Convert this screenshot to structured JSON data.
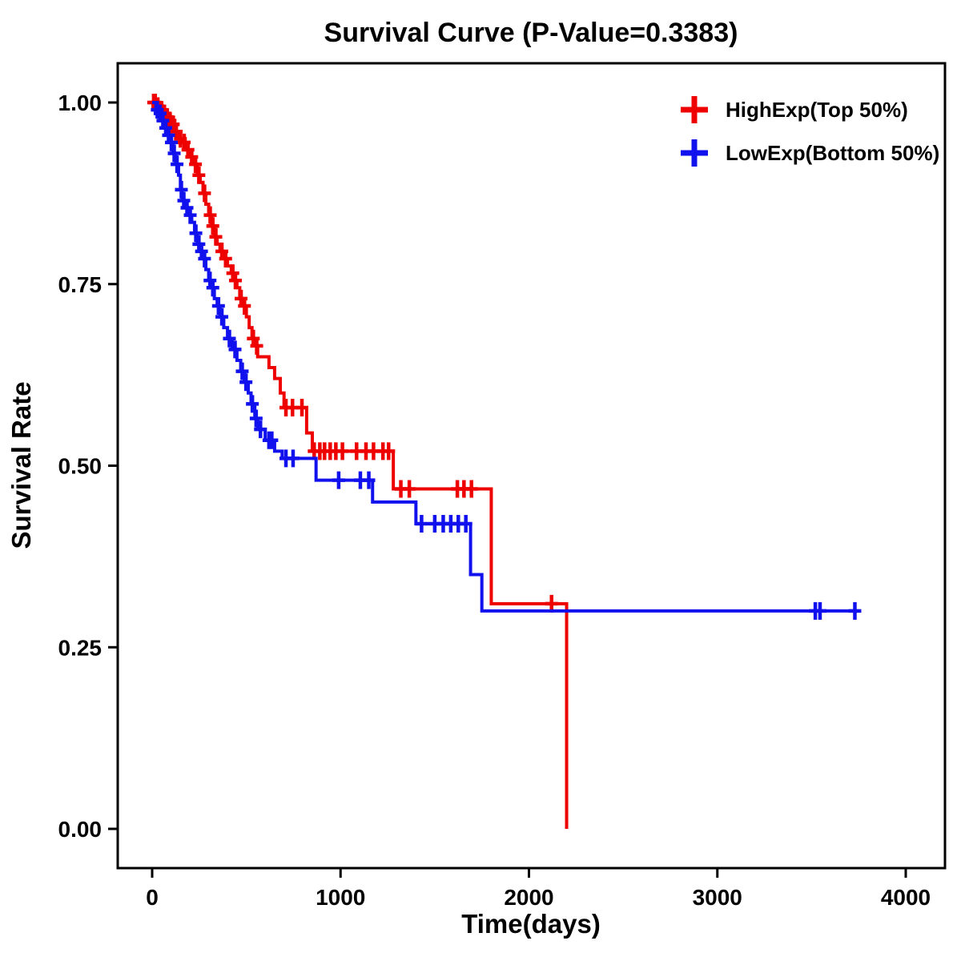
{
  "page": {
    "background": "#ffffff",
    "text_color": "#000000"
  },
  "chart_data": {
    "type": "line",
    "chart_kind": "kaplan-meier-step-survival",
    "title": "Survival Curve (P-Value=0.3383)",
    "p_value": "0.3383",
    "xlabel": "Time(days)",
    "ylabel": "Survival Rate",
    "xlim": [
      0,
      4000
    ],
    "ylim": [
      0.0,
      1.0
    ],
    "x_ticks": [
      "0",
      "1000",
      "2000",
      "3000",
      "4000"
    ],
    "y_ticks": [
      "0.00",
      "0.25",
      "0.50",
      "0.75",
      "1.00"
    ],
    "grid": false,
    "legend_position": "top-right",
    "series": [
      {
        "name": "HighExp(Top 50%)",
        "color": "#ee0000",
        "steps": [
          [
            0,
            1.0
          ],
          [
            25,
            0.995
          ],
          [
            45,
            0.99
          ],
          [
            60,
            0.985
          ],
          [
            75,
            0.98
          ],
          [
            90,
            0.975
          ],
          [
            105,
            0.97
          ],
          [
            120,
            0.96
          ],
          [
            140,
            0.95
          ],
          [
            160,
            0.945
          ],
          [
            180,
            0.935
          ],
          [
            200,
            0.925
          ],
          [
            220,
            0.915
          ],
          [
            240,
            0.9
          ],
          [
            255,
            0.89
          ],
          [
            270,
            0.875
          ],
          [
            285,
            0.86
          ],
          [
            300,
            0.845
          ],
          [
            315,
            0.83
          ],
          [
            330,
            0.815
          ],
          [
            345,
            0.805
          ],
          [
            360,
            0.795
          ],
          [
            380,
            0.785
          ],
          [
            400,
            0.775
          ],
          [
            420,
            0.765
          ],
          [
            435,
            0.755
          ],
          [
            450,
            0.745
          ],
          [
            465,
            0.73
          ],
          [
            480,
            0.72
          ],
          [
            500,
            0.705
          ],
          [
            515,
            0.69
          ],
          [
            530,
            0.675
          ],
          [
            545,
            0.665
          ],
          [
            560,
            0.65
          ],
          [
            620,
            0.635
          ],
          [
            650,
            0.62
          ],
          [
            680,
            0.6
          ],
          [
            700,
            0.58
          ],
          [
            820,
            0.545
          ],
          [
            850,
            0.52
          ],
          [
            1280,
            0.468
          ],
          [
            1800,
            0.31
          ],
          [
            2200,
            0.31
          ],
          [
            2200,
            0.0
          ]
        ],
        "censors": [
          [
            8,
            1.0
          ],
          [
            16,
            1.0
          ],
          [
            30,
            0.995
          ],
          [
            50,
            0.99
          ],
          [
            65,
            0.985
          ],
          [
            80,
            0.98
          ],
          [
            95,
            0.975
          ],
          [
            112,
            0.97
          ],
          [
            128,
            0.96
          ],
          [
            150,
            0.95
          ],
          [
            170,
            0.945
          ],
          [
            190,
            0.935
          ],
          [
            210,
            0.925
          ],
          [
            230,
            0.915
          ],
          [
            248,
            0.9
          ],
          [
            278,
            0.875
          ],
          [
            308,
            0.845
          ],
          [
            322,
            0.83
          ],
          [
            338,
            0.815
          ],
          [
            370,
            0.795
          ],
          [
            390,
            0.785
          ],
          [
            428,
            0.765
          ],
          [
            442,
            0.755
          ],
          [
            472,
            0.73
          ],
          [
            490,
            0.72
          ],
          [
            537,
            0.675
          ],
          [
            555,
            0.665
          ],
          [
            710,
            0.58
          ],
          [
            745,
            0.58
          ],
          [
            795,
            0.58
          ],
          [
            860,
            0.52
          ],
          [
            890,
            0.52
          ],
          [
            915,
            0.52
          ],
          [
            945,
            0.52
          ],
          [
            975,
            0.52
          ],
          [
            1010,
            0.52
          ],
          [
            1085,
            0.52
          ],
          [
            1135,
            0.52
          ],
          [
            1175,
            0.52
          ],
          [
            1225,
            0.52
          ],
          [
            1255,
            0.52
          ],
          [
            1320,
            0.468
          ],
          [
            1365,
            0.468
          ],
          [
            1620,
            0.468
          ],
          [
            1655,
            0.468
          ],
          [
            1695,
            0.468
          ],
          [
            2120,
            0.31
          ]
        ]
      },
      {
        "name": "LowExp(Bottom 50%)",
        "color": "#1111ee",
        "steps": [
          [
            0,
            1.0
          ],
          [
            20,
            0.99
          ],
          [
            35,
            0.985
          ],
          [
            50,
            0.975
          ],
          [
            65,
            0.965
          ],
          [
            80,
            0.955
          ],
          [
            95,
            0.945
          ],
          [
            110,
            0.93
          ],
          [
            125,
            0.915
          ],
          [
            140,
            0.9
          ],
          [
            150,
            0.88
          ],
          [
            160,
            0.865
          ],
          [
            175,
            0.855
          ],
          [
            195,
            0.845
          ],
          [
            210,
            0.835
          ],
          [
            225,
            0.82
          ],
          [
            240,
            0.805
          ],
          [
            255,
            0.795
          ],
          [
            270,
            0.785
          ],
          [
            285,
            0.77
          ],
          [
            300,
            0.755
          ],
          [
            315,
            0.745
          ],
          [
            330,
            0.73
          ],
          [
            345,
            0.72
          ],
          [
            360,
            0.705
          ],
          [
            380,
            0.69
          ],
          [
            400,
            0.675
          ],
          [
            425,
            0.66
          ],
          [
            450,
            0.645
          ],
          [
            470,
            0.63
          ],
          [
            490,
            0.615
          ],
          [
            510,
            0.6
          ],
          [
            525,
            0.585
          ],
          [
            545,
            0.565
          ],
          [
            560,
            0.55
          ],
          [
            600,
            0.535
          ],
          [
            650,
            0.52
          ],
          [
            690,
            0.51
          ],
          [
            870,
            0.48
          ],
          [
            1170,
            0.45
          ],
          [
            1400,
            0.42
          ],
          [
            1690,
            0.35
          ],
          [
            1750,
            0.3
          ],
          [
            3730,
            0.3
          ]
        ],
        "censors": [
          [
            27,
            0.99
          ],
          [
            42,
            0.985
          ],
          [
            57,
            0.975
          ],
          [
            72,
            0.965
          ],
          [
            87,
            0.955
          ],
          [
            102,
            0.945
          ],
          [
            117,
            0.93
          ],
          [
            132,
            0.915
          ],
          [
            155,
            0.88
          ],
          [
            168,
            0.865
          ],
          [
            185,
            0.855
          ],
          [
            202,
            0.845
          ],
          [
            232,
            0.82
          ],
          [
            248,
            0.805
          ],
          [
            262,
            0.795
          ],
          [
            278,
            0.785
          ],
          [
            307,
            0.755
          ],
          [
            322,
            0.745
          ],
          [
            352,
            0.72
          ],
          [
            370,
            0.705
          ],
          [
            410,
            0.675
          ],
          [
            440,
            0.66
          ],
          [
            478,
            0.63
          ],
          [
            498,
            0.615
          ],
          [
            532,
            0.585
          ],
          [
            552,
            0.565
          ],
          [
            575,
            0.55
          ],
          [
            620,
            0.535
          ],
          [
            635,
            0.535
          ],
          [
            710,
            0.51
          ],
          [
            748,
            0.51
          ],
          [
            990,
            0.48
          ],
          [
            1105,
            0.48
          ],
          [
            1150,
            0.48
          ],
          [
            1430,
            0.42
          ],
          [
            1500,
            0.42
          ],
          [
            1545,
            0.42
          ],
          [
            1585,
            0.42
          ],
          [
            1625,
            0.42
          ],
          [
            1665,
            0.42
          ],
          [
            3520,
            0.3
          ],
          [
            3545,
            0.3
          ],
          [
            3730,
            0.3
          ]
        ]
      }
    ]
  }
}
